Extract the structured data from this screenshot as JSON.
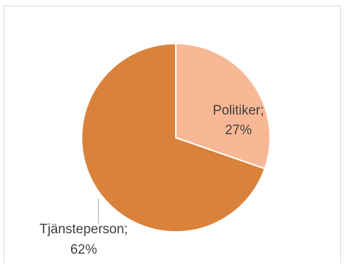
{
  "chart_data": {
    "type": "pie",
    "title": "",
    "slices": [
      {
        "label": "Politiker",
        "value_label": "27%",
        "value": 27,
        "color": "#f8b895"
      },
      {
        "label": "Tjänsteperson",
        "value_label": "62%",
        "value": 62,
        "color": "#d9823c"
      }
    ],
    "legend": "none"
  },
  "labels": {
    "politiker_line1": "Politiker;",
    "politiker_line2": "27%",
    "tjansteperson_line1": "Tjänsteperson;",
    "tjansteperson_line2": "62%"
  }
}
